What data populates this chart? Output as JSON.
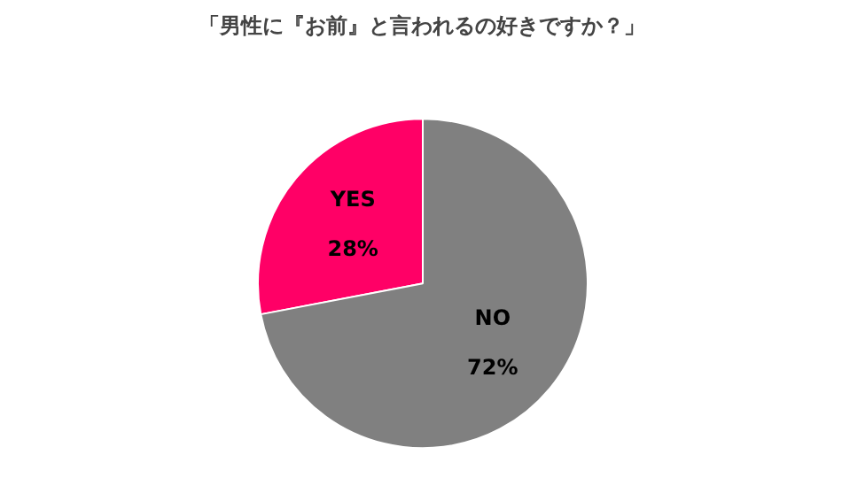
{
  "chart_data": {
    "type": "pie",
    "title": "「男性に『お前』と言われるの好きですか？」",
    "categories": [
      "YES",
      "NO"
    ],
    "values": [
      28,
      72
    ],
    "colors": [
      "#ff0066",
      "#808080"
    ],
    "value_labels": [
      "28%",
      "72%"
    ]
  }
}
